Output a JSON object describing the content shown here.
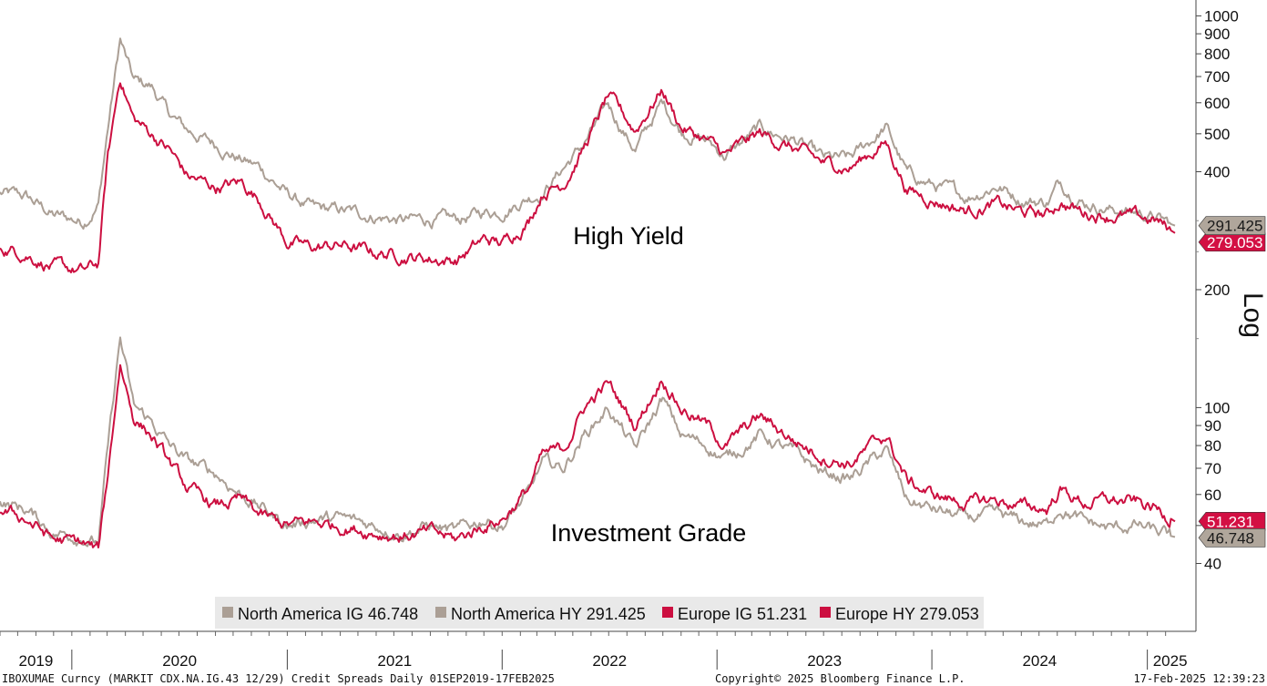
{
  "chart_data": {
    "type": "line",
    "scale": "log",
    "scale_label": "Log",
    "x_range": [
      "2019-09-01",
      "2025-02-17"
    ],
    "year_labels": [
      "2019",
      "2020",
      "2021",
      "2022",
      "2023",
      "2024",
      "2025"
    ],
    "y_ticks_high": [
      1000,
      900,
      800,
      700,
      600,
      500,
      400,
      200
    ],
    "y_ticks_low": [
      100,
      90,
      80,
      70,
      60,
      50,
      40
    ],
    "y_tick_labels_high": [
      "1000",
      "900",
      "800",
      "700",
      "600",
      "500",
      "400",
      "200"
    ],
    "y_tick_labels_low": [
      "100",
      "90",
      "80",
      "70",
      "60",
      "40"
    ],
    "annotations": [
      "High Yield",
      "Investment Grade"
    ],
    "series": [
      {
        "name": "North America HY",
        "legend": "North America HY 291.425",
        "last": "291.425",
        "color": "#ab9f95",
        "points": [
          [
            "2019-09-01",
            352
          ],
          [
            "2019-10-15",
            345
          ],
          [
            "2019-12-01",
            310
          ],
          [
            "2020-01-20",
            298
          ],
          [
            "2020-02-15",
            330
          ],
          [
            "2020-03-01",
            500
          ],
          [
            "2020-03-23",
            870
          ],
          [
            "2020-04-15",
            680
          ],
          [
            "2020-05-15",
            660
          ],
          [
            "2020-06-15",
            560
          ],
          [
            "2020-07-15",
            510
          ],
          [
            "2020-09-01",
            470
          ],
          [
            "2020-10-15",
            430
          ],
          [
            "2020-11-15",
            410
          ],
          [
            "2021-01-01",
            350
          ],
          [
            "2021-02-15",
            320
          ],
          [
            "2021-04-01",
            318
          ],
          [
            "2021-06-01",
            308
          ],
          [
            "2021-07-15",
            300
          ],
          [
            "2021-09-01",
            302
          ],
          [
            "2021-10-15",
            300
          ],
          [
            "2021-12-01",
            315
          ],
          [
            "2022-01-01",
            318
          ],
          [
            "2022-02-15",
            345
          ],
          [
            "2022-03-10",
            355
          ],
          [
            "2022-04-15",
            410
          ],
          [
            "2022-05-20",
            470
          ],
          [
            "2022-06-30",
            590
          ],
          [
            "2022-08-15",
            455
          ],
          [
            "2022-09-30",
            600
          ],
          [
            "2022-11-01",
            510
          ],
          [
            "2022-12-15",
            480
          ],
          [
            "2023-01-15",
            440
          ],
          [
            "2023-03-15",
            515
          ],
          [
            "2023-05-15",
            480
          ],
          [
            "2023-07-01",
            430
          ],
          [
            "2023-08-15",
            430
          ],
          [
            "2023-10-15",
            520
          ],
          [
            "2023-11-20",
            395
          ],
          [
            "2024-01-01",
            370
          ],
          [
            "2024-03-01",
            345
          ],
          [
            "2024-04-20",
            370
          ],
          [
            "2024-06-01",
            340
          ],
          [
            "2024-07-15",
            335
          ],
          [
            "2024-08-05",
            375
          ],
          [
            "2024-09-15",
            335
          ],
          [
            "2024-11-01",
            320
          ],
          [
            "2024-12-15",
            315
          ],
          [
            "2025-01-15",
            305
          ],
          [
            "2025-02-17",
            291.425
          ]
        ]
      },
      {
        "name": "Europe HY",
        "legend": "Europe HY 279.053",
        "last": "279.053",
        "color": "#cc0f40",
        "points": [
          [
            "2019-09-01",
            258
          ],
          [
            "2019-10-15",
            248
          ],
          [
            "2019-12-01",
            228
          ],
          [
            "2020-01-20",
            222
          ],
          [
            "2020-02-15",
            232
          ],
          [
            "2020-03-01",
            420
          ],
          [
            "2020-03-23",
            700
          ],
          [
            "2020-04-15",
            545
          ],
          [
            "2020-05-15",
            500
          ],
          [
            "2020-06-15",
            455
          ],
          [
            "2020-07-15",
            390
          ],
          [
            "2020-09-01",
            365
          ],
          [
            "2020-10-15",
            375
          ],
          [
            "2020-11-15",
            340
          ],
          [
            "2021-01-01",
            265
          ],
          [
            "2021-02-15",
            255
          ],
          [
            "2021-04-01",
            260
          ],
          [
            "2021-06-01",
            248
          ],
          [
            "2021-07-15",
            245
          ],
          [
            "2021-09-01",
            240
          ],
          [
            "2021-10-15",
            238
          ],
          [
            "2021-12-01",
            268
          ],
          [
            "2022-01-01",
            262
          ],
          [
            "2022-02-15",
            300
          ],
          [
            "2022-03-10",
            355
          ],
          [
            "2022-04-15",
            375
          ],
          [
            "2022-05-20",
            460
          ],
          [
            "2022-06-30",
            620
          ],
          [
            "2022-08-15",
            510
          ],
          [
            "2022-09-30",
            650
          ],
          [
            "2022-11-01",
            520
          ],
          [
            "2022-12-15",
            480
          ],
          [
            "2023-01-15",
            440
          ],
          [
            "2023-03-15",
            500
          ],
          [
            "2023-05-15",
            455
          ],
          [
            "2023-07-01",
            420
          ],
          [
            "2023-08-15",
            410
          ],
          [
            "2023-10-15",
            475
          ],
          [
            "2023-11-20",
            360
          ],
          [
            "2024-01-01",
            340
          ],
          [
            "2024-03-01",
            318
          ],
          [
            "2024-04-20",
            330
          ],
          [
            "2024-06-01",
            315
          ],
          [
            "2024-07-15",
            310
          ],
          [
            "2024-08-05",
            335
          ],
          [
            "2024-09-15",
            315
          ],
          [
            "2024-11-01",
            310
          ],
          [
            "2024-12-15",
            305
          ],
          [
            "2025-01-15",
            300
          ],
          [
            "2025-02-17",
            279.053
          ]
        ]
      },
      {
        "name": "North America IG",
        "legend": "North America IG 46.748",
        "last": "46.748",
        "color": "#ab9f95",
        "points": [
          [
            "2019-09-01",
            57
          ],
          [
            "2019-10-15",
            55
          ],
          [
            "2019-12-01",
            48
          ],
          [
            "2020-01-20",
            47
          ],
          [
            "2020-02-15",
            45
          ],
          [
            "2020-03-01",
            75
          ],
          [
            "2020-03-23",
            150
          ],
          [
            "2020-04-15",
            100
          ],
          [
            "2020-05-15",
            92
          ],
          [
            "2020-06-15",
            80
          ],
          [
            "2020-07-15",
            73
          ],
          [
            "2020-09-01",
            68
          ],
          [
            "2020-10-15",
            60
          ],
          [
            "2020-11-15",
            56
          ],
          [
            "2021-01-01",
            50
          ],
          [
            "2021-02-15",
            52
          ],
          [
            "2021-04-01",
            52
          ],
          [
            "2021-06-01",
            50
          ],
          [
            "2021-07-15",
            48
          ],
          [
            "2021-09-01",
            50
          ],
          [
            "2021-10-15",
            48
          ],
          [
            "2021-12-01",
            52
          ],
          [
            "2022-01-01",
            50
          ],
          [
            "2022-02-15",
            60
          ],
          [
            "2022-03-10",
            72
          ],
          [
            "2022-04-15",
            70
          ],
          [
            "2022-05-20",
            85
          ],
          [
            "2022-06-30",
            100
          ],
          [
            "2022-08-15",
            78
          ],
          [
            "2022-09-30",
            105
          ],
          [
            "2022-11-01",
            85
          ],
          [
            "2022-12-15",
            80
          ],
          [
            "2023-01-15",
            74
          ],
          [
            "2023-03-15",
            85
          ],
          [
            "2023-05-15",
            76
          ],
          [
            "2023-07-01",
            68
          ],
          [
            "2023-08-15",
            66
          ],
          [
            "2023-10-15",
            78
          ],
          [
            "2023-11-20",
            58
          ],
          [
            "2024-01-01",
            55
          ],
          [
            "2024-03-01",
            52
          ],
          [
            "2024-04-20",
            53
          ],
          [
            "2024-06-01",
            51
          ],
          [
            "2024-07-15",
            50
          ],
          [
            "2024-08-05",
            56
          ],
          [
            "2024-09-15",
            51
          ],
          [
            "2024-11-01",
            49
          ],
          [
            "2024-12-15",
            50
          ],
          [
            "2025-01-15",
            48
          ],
          [
            "2025-02-17",
            46.748
          ]
        ]
      },
      {
        "name": "Europe IG",
        "legend": "Europe IG 51.231",
        "last": "51.231",
        "color": "#cc0f40",
        "points": [
          [
            "2019-09-01",
            55
          ],
          [
            "2019-10-15",
            52
          ],
          [
            "2019-12-01",
            46
          ],
          [
            "2020-01-20",
            45
          ],
          [
            "2020-02-15",
            43
          ],
          [
            "2020-03-01",
            65
          ],
          [
            "2020-03-23",
            130
          ],
          [
            "2020-04-15",
            95
          ],
          [
            "2020-05-15",
            85
          ],
          [
            "2020-06-15",
            72
          ],
          [
            "2020-07-15",
            62
          ],
          [
            "2020-09-01",
            56
          ],
          [
            "2020-10-15",
            58
          ],
          [
            "2020-11-15",
            53
          ],
          [
            "2021-01-01",
            50
          ],
          [
            "2021-02-15",
            51
          ],
          [
            "2021-04-01",
            50
          ],
          [
            "2021-06-01",
            48
          ],
          [
            "2021-07-15",
            47
          ],
          [
            "2021-09-01",
            48
          ],
          [
            "2021-10-15",
            46
          ],
          [
            "2021-12-01",
            50
          ],
          [
            "2022-01-01",
            52
          ],
          [
            "2022-02-15",
            62
          ],
          [
            "2022-03-10",
            75
          ],
          [
            "2022-04-15",
            78
          ],
          [
            "2022-05-20",
            100
          ],
          [
            "2022-06-30",
            115
          ],
          [
            "2022-08-15",
            90
          ],
          [
            "2022-09-30",
            120
          ],
          [
            "2022-11-01",
            100
          ],
          [
            "2022-12-15",
            90
          ],
          [
            "2023-01-15",
            80
          ],
          [
            "2023-03-15",
            95
          ],
          [
            "2023-05-15",
            82
          ],
          [
            "2023-07-01",
            75
          ],
          [
            "2023-08-15",
            72
          ],
          [
            "2023-10-15",
            85
          ],
          [
            "2023-11-20",
            65
          ],
          [
            "2024-01-01",
            60
          ],
          [
            "2024-03-01",
            57
          ],
          [
            "2024-04-20",
            58
          ],
          [
            "2024-06-01",
            56
          ],
          [
            "2024-07-15",
            55
          ],
          [
            "2024-08-05",
            62
          ],
          [
            "2024-09-15",
            57
          ],
          [
            "2024-11-01",
            58
          ],
          [
            "2024-12-15",
            57
          ],
          [
            "2025-01-15",
            55
          ],
          [
            "2025-02-17",
            51.231
          ]
        ]
      }
    ],
    "legend_order": [
      "North America IG 46.748",
      "North America HY 291.425",
      "Europe IG 51.231",
      "Europe HY 279.053"
    ]
  },
  "footer": {
    "left": "IBOXUMAE Curncy (MARKIT CDX.NA.IG.43 12/29) Credit Spreads  Daily 01SEP2019-17FEB2025",
    "center": "Copyright© 2025 Bloomberg Finance L.P.",
    "right": "17-Feb-2025 12:39:23"
  }
}
